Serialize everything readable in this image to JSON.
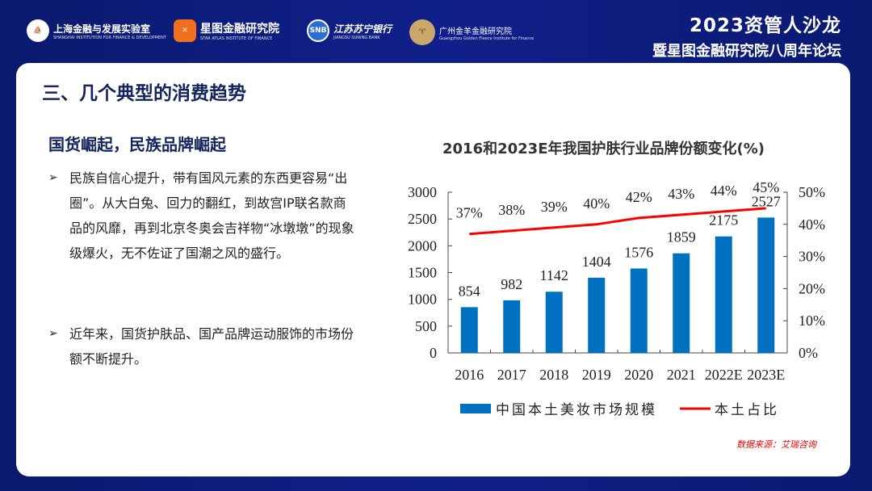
{
  "header": {
    "logos": [
      {
        "name": "上海金融与发展实验室",
        "sub": "SHANGHAI INSTITUTION FOR FINANCE & DEVELOPMENT"
      },
      {
        "name": "星图金融研究院",
        "sub": "STAR ATLAS INSTITUTE OF FINANCE"
      },
      {
        "name": "江苏苏宁银行",
        "sub": "JIANGSU SUNING BANK",
        "mark": "SNB"
      },
      {
        "name": "广州金羊金融研究院",
        "sub": "Guangzhou Golden Fleece Institute for Finance"
      }
    ],
    "title_line1": "2023资管人沙龙",
    "title_line2": "暨星图金融研究院八周年论坛"
  },
  "section_title": "三、几个典型的消费趋势",
  "subtitle": "国货崛起，民族品牌崛起",
  "bullets": [
    "民族自信心提升，带有国风元素的东西更容易“出圈”。从大白兔、回力的翻红，到故宫IP联名款商品的风靡，再到北京冬奥会吉祥物“冰墩墩”的现象级爆火，无不佐证了国潮之风的盛行。",
    "近年来，国货护肤品、国产品牌运动服饰的市场份额不断提升。"
  ],
  "bullet_marker": "➢",
  "source": "数据来源：艾瑞咨询",
  "chart_data": {
    "type": "bar+line",
    "title": "2016和2023E年我国护肤行业品牌份额变化(%)",
    "categories": [
      "2016",
      "2017",
      "2018",
      "2019",
      "2020",
      "2021",
      "2022E",
      "2023E"
    ],
    "series": [
      {
        "name": "中国本土美妆市场规模",
        "type": "bar",
        "axis": "left",
        "values": [
          854,
          982,
          1142,
          1404,
          1576,
          1859,
          2175,
          2527
        ],
        "color": "#0070c0"
      },
      {
        "name": "本土占比",
        "type": "line",
        "axis": "right",
        "values": [
          37,
          38,
          39,
          40,
          42,
          43,
          44,
          45
        ],
        "labels": [
          "37%",
          "38%",
          "39%",
          "40%",
          "42%",
          "43%",
          "44%",
          "45%"
        ],
        "color": "#ff0000"
      }
    ],
    "left_axis": {
      "range": [
        0,
        3000
      ],
      "ticks": [
        "0",
        "500",
        "1000",
        "1500",
        "2000",
        "2500",
        "3000"
      ]
    },
    "right_axis": {
      "range": [
        0,
        50
      ],
      "ticks": [
        "0%",
        "10%",
        "20%",
        "30%",
        "40%",
        "50%"
      ]
    },
    "legend": "bottom",
    "grid": false
  }
}
